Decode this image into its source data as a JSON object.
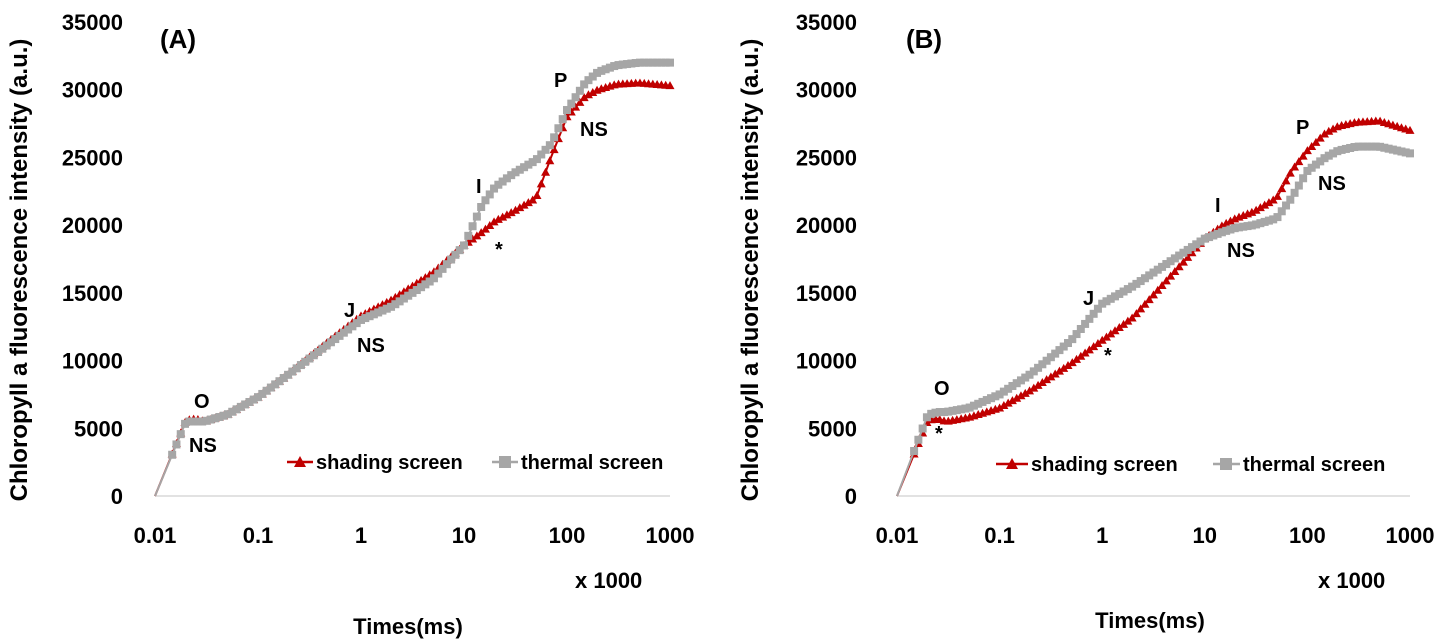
{
  "chart_data": [
    {
      "type": "line",
      "panel_label": "(A)",
      "ylabel": "Chloropyll a fluorescence intensity (a.u.)",
      "xlabel": "Times(ms)",
      "x_multiplier": "x 1000",
      "xscale": "log",
      "xlim": [
        0.01,
        1000
      ],
      "ylim": [
        0,
        35000
      ],
      "x_ticks": [
        "0.01",
        "0.1",
        "1",
        "10",
        "100",
        "1000"
      ],
      "y_ticks": [
        "0",
        "5000",
        "10000",
        "15000",
        "20000",
        "25000",
        "30000",
        "35000"
      ],
      "legend": [
        "shading screen",
        "thermal screen"
      ],
      "series": [
        {
          "name": "shading screen",
          "color": "#c00000",
          "marker": "triangle",
          "x": [
            0.01,
            0.02,
            0.025,
            0.03,
            0.05,
            0.1,
            0.2,
            0.5,
            1,
            2,
            5,
            10,
            15,
            20,
            30,
            50,
            70,
            100,
            150,
            200,
            300,
            500,
            1000
          ],
          "y": [
            0,
            5600,
            5700,
            5500,
            6000,
            7300,
            9000,
            11500,
            13300,
            14500,
            16500,
            18500,
            19500,
            20300,
            21000,
            22000,
            25000,
            28000,
            29500,
            30000,
            30400,
            30500,
            30300
          ]
        },
        {
          "name": "thermal screen",
          "color": "#a6a6a6",
          "marker": "square",
          "x": [
            0.01,
            0.02,
            0.025,
            0.03,
            0.05,
            0.1,
            0.2,
            0.5,
            1,
            2,
            5,
            10,
            15,
            20,
            30,
            50,
            70,
            100,
            150,
            200,
            300,
            500,
            1000
          ],
          "y": [
            0,
            5500,
            5500,
            5500,
            6000,
            7300,
            9000,
            11300,
            13000,
            14000,
            16000,
            18500,
            21500,
            22800,
            23800,
            24800,
            26000,
            28500,
            30500,
            31300,
            31800,
            32000,
            32000
          ]
        }
      ],
      "annotations": [
        "O",
        "NS",
        "J",
        "NS",
        "I",
        "*",
        "P",
        "NS"
      ]
    },
    {
      "type": "line",
      "panel_label": "(B)",
      "ylabel": "Chloropyll a fluorescence intensity (a.u.)",
      "xlabel": "Times(ms)",
      "x_multiplier": "x 1000",
      "xscale": "log",
      "xlim": [
        0.01,
        1000
      ],
      "ylim": [
        0,
        35000
      ],
      "x_ticks": [
        "0.01",
        "0.1",
        "1",
        "10",
        "100",
        "1000"
      ],
      "y_ticks": [
        "0",
        "5000",
        "10000",
        "15000",
        "20000",
        "25000",
        "30000",
        "35000"
      ],
      "legend": [
        "shading screen",
        "thermal screen"
      ],
      "series": [
        {
          "name": "shading screen",
          "color": "#c00000",
          "marker": "triangle",
          "x": [
            0.01,
            0.02,
            0.025,
            0.03,
            0.05,
            0.1,
            0.2,
            0.5,
            1,
            2,
            5,
            10,
            15,
            20,
            30,
            50,
            70,
            100,
            150,
            200,
            300,
            500,
            1000
          ],
          "y": [
            0,
            5600,
            5700,
            5500,
            5800,
            6500,
            7800,
            9800,
            11500,
            13200,
            16500,
            19000,
            20000,
            20500,
            21000,
            22000,
            24000,
            25500,
            26800,
            27300,
            27600,
            27700,
            27000
          ]
        },
        {
          "name": "thermal screen",
          "color": "#a6a6a6",
          "marker": "square",
          "x": [
            0.01,
            0.02,
            0.025,
            0.03,
            0.05,
            0.1,
            0.2,
            0.5,
            1,
            2,
            5,
            10,
            15,
            20,
            30,
            50,
            70,
            100,
            150,
            200,
            300,
            500,
            1000
          ],
          "y": [
            0,
            6000,
            6200,
            6200,
            6500,
            7500,
            9000,
            11500,
            14200,
            15500,
            17500,
            19000,
            19500,
            19800,
            20000,
            20500,
            22000,
            24000,
            25000,
            25500,
            25800,
            25800,
            25300
          ]
        }
      ],
      "annotations": [
        "O",
        "*",
        "J",
        "*",
        "I",
        "NS",
        "P",
        "NS"
      ]
    }
  ]
}
